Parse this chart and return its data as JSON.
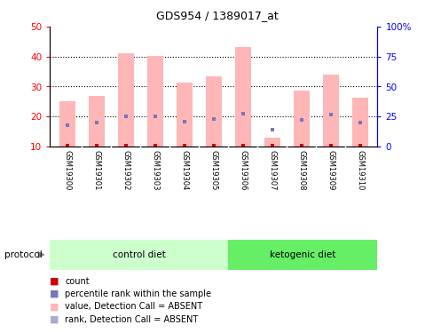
{
  "title": "GDS954 / 1389017_at",
  "samples": [
    "GSM19300",
    "GSM19301",
    "GSM19302",
    "GSM19303",
    "GSM19304",
    "GSM19305",
    "GSM19306",
    "GSM19307",
    "GSM19308",
    "GSM19309",
    "GSM19310"
  ],
  "pink_bar_top": [
    25.2,
    26.8,
    41.2,
    40.2,
    31.2,
    33.4,
    43.2,
    13.0,
    28.8,
    34.0,
    26.4
  ],
  "pink_bar_bottom": [
    10,
    10,
    10,
    10,
    10,
    10,
    10,
    10,
    10,
    10,
    10
  ],
  "blue_dot_y": [
    17.0,
    18.0,
    20.2,
    20.2,
    18.2,
    19.2,
    21.0,
    15.5,
    19.0,
    20.8,
    18.0
  ],
  "red_square_y": [
    10.3,
    10.3,
    10.3,
    10.3,
    10.3,
    10.3,
    10.3,
    10.3,
    10.3,
    10.3,
    10.3
  ],
  "ylim_left": [
    10,
    50
  ],
  "ylim_right": [
    0,
    100
  ],
  "yticks_left": [
    10,
    20,
    30,
    40,
    50
  ],
  "yticks_right": [
    0,
    25,
    50,
    75,
    100
  ],
  "ytick_labels_right": [
    "0",
    "25",
    "50",
    "75",
    "100%"
  ],
  "n_control": 6,
  "n_ketogenic": 5,
  "pink_bar_color": "#FFB6B6",
  "blue_dot_color": "#7777BB",
  "red_square_color": "#CC0000",
  "bg_color": "#FFFFFF",
  "plot_bg_color": "#FFFFFF",
  "control_bg": "#CCFFCC",
  "ketogenic_bg": "#66EE66",
  "sample_label_bg": "#CCCCCC",
  "legend_items": [
    {
      "label": "count",
      "color": "#CC0000"
    },
    {
      "label": "percentile rank within the sample",
      "color": "#4444AA"
    },
    {
      "label": "value, Detection Call = ABSENT",
      "color": "#FFB6B6"
    },
    {
      "label": "rank, Detection Call = ABSENT",
      "color": "#AAAACC"
    }
  ]
}
